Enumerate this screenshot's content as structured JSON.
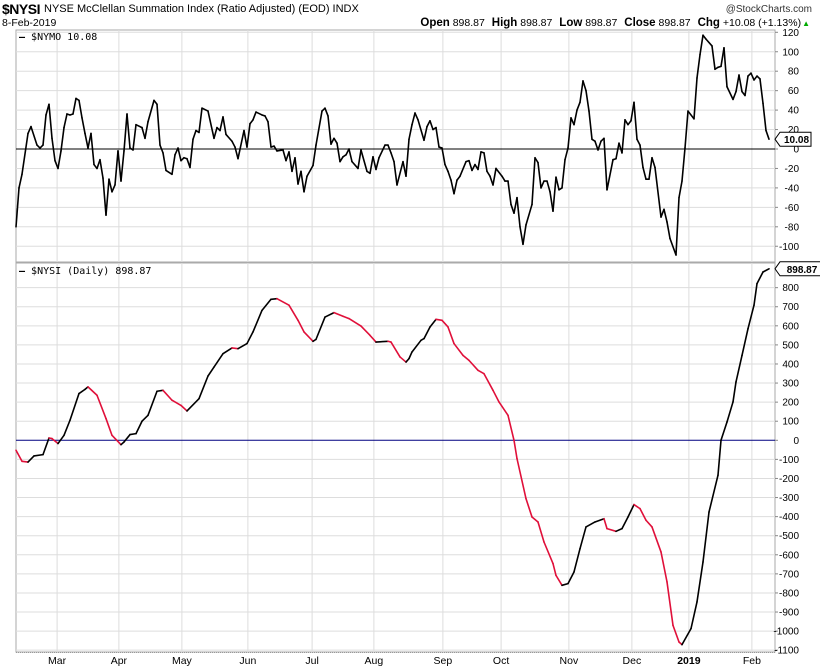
{
  "header": {
    "symbol": "$NYSI",
    "title": "NYSE McClellan Summation Index (Ratio Adjusted) (EOD)  INDX",
    "brand": "@StockCharts.com",
    "date": "8-Feb-2019",
    "open_label": "Open",
    "open": "898.87",
    "high_label": "High",
    "high": "898.87",
    "low_label": "Low",
    "low": "898.87",
    "close_label": "Close",
    "close": "898.87",
    "chg_label": "Chg",
    "chg": "+10.08 (+1.13%)",
    "chg_icon": "up-triangle-icon"
  },
  "colors": {
    "line": "#000000",
    "falling": "#e0103a",
    "zero_line": "#000080",
    "grid": "#dddddd",
    "up": "#00aa00"
  },
  "chart_data": [
    {
      "type": "line",
      "name": "$NYMO",
      "legend": "$NYMO 10.08",
      "last_value": "10.08",
      "ylim": [
        -110,
        125
      ],
      "yticks": [
        120,
        100,
        80,
        60,
        40,
        20,
        0,
        -20,
        -40,
        -60,
        -80,
        -100
      ],
      "zero_line": 0,
      "x_unit": "trading day index",
      "points": [
        [
          0,
          -80
        ],
        [
          1,
          -40
        ],
        [
          2,
          -26
        ],
        [
          4,
          16
        ],
        [
          5,
          23
        ],
        [
          7,
          4
        ],
        [
          8,
          1
        ],
        [
          9,
          4
        ],
        [
          10,
          35
        ],
        [
          11,
          46
        ],
        [
          12,
          11
        ],
        [
          13,
          -12
        ],
        [
          14,
          -20
        ],
        [
          15,
          -2
        ],
        [
          16,
          22
        ],
        [
          17,
          36
        ],
        [
          18,
          35
        ],
        [
          19,
          36
        ],
        [
          20,
          52
        ],
        [
          21,
          50
        ],
        [
          22,
          32
        ],
        [
          23,
          16
        ],
        [
          24,
          1
        ],
        [
          25,
          16
        ],
        [
          26,
          -16
        ],
        [
          27,
          -20
        ],
        [
          28,
          -11
        ],
        [
          29,
          -30
        ],
        [
          30,
          -68
        ],
        [
          31,
          -31
        ],
        [
          32,
          -44
        ],
        [
          33,
          -37
        ],
        [
          34,
          -2
        ],
        [
          35,
          -33
        ],
        [
          36,
          -2
        ],
        [
          37,
          36
        ],
        [
          38,
          1
        ],
        [
          39,
          -1
        ],
        [
          40,
          25
        ],
        [
          42,
          22
        ],
        [
          43,
          11
        ],
        [
          44,
          28
        ],
        [
          46,
          50
        ],
        [
          47,
          46
        ],
        [
          48,
          4
        ],
        [
          49,
          -4
        ],
        [
          50,
          -22
        ],
        [
          52,
          -26
        ],
        [
          53,
          -6
        ],
        [
          54,
          1
        ],
        [
          55,
          -12
        ],
        [
          56,
          -9
        ],
        [
          57,
          -10
        ],
        [
          58,
          -19
        ],
        [
          59,
          10
        ],
        [
          60,
          19
        ],
        [
          61,
          17
        ],
        [
          62,
          42
        ],
        [
          64,
          39
        ],
        [
          66,
          11
        ],
        [
          67,
          22
        ],
        [
          68,
          19
        ],
        [
          69,
          33
        ],
        [
          70,
          15
        ],
        [
          72,
          8
        ],
        [
          73,
          2
        ],
        [
          74,
          -10
        ],
        [
          76,
          19
        ],
        [
          77,
          2
        ],
        [
          78,
          26
        ],
        [
          79,
          30
        ],
        [
          80,
          38
        ],
        [
          82,
          35
        ],
        [
          83,
          34
        ],
        [
          84,
          28
        ],
        [
          85,
          2
        ],
        [
          86,
          3
        ],
        [
          87,
          -2
        ],
        [
          89,
          -1
        ],
        [
          90,
          -12
        ],
        [
          91,
          -3
        ],
        [
          92,
          -23
        ],
        [
          93,
          -9
        ],
        [
          94,
          -36
        ],
        [
          95,
          -23
        ],
        [
          96,
          -44
        ],
        [
          97,
          -28
        ],
        [
          99,
          -17
        ],
        [
          100,
          4
        ],
        [
          102,
          39
        ],
        [
          103,
          42
        ],
        [
          104,
          34
        ],
        [
          105,
          5
        ],
        [
          106,
          11
        ],
        [
          107,
          6
        ],
        [
          108,
          -13
        ],
        [
          109,
          -8
        ],
        [
          110,
          -6
        ],
        [
          111,
          0
        ],
        [
          112,
          -13
        ],
        [
          114,
          -20
        ],
        [
          115,
          -1
        ],
        [
          117,
          -23
        ],
        [
          118,
          -25
        ],
        [
          119,
          -8
        ],
        [
          120,
          -21
        ],
        [
          121,
          -9
        ],
        [
          123,
          4
        ],
        [
          124,
          4
        ],
        [
          125,
          -4
        ],
        [
          126,
          -13
        ],
        [
          127,
          -37
        ],
        [
          129,
          -13
        ],
        [
          130,
          -28
        ],
        [
          131,
          10
        ],
        [
          132,
          25
        ],
        [
          133,
          37
        ],
        [
          134,
          30
        ],
        [
          136,
          9
        ],
        [
          137,
          23
        ],
        [
          138,
          29
        ],
        [
          139,
          20
        ],
        [
          140,
          22
        ],
        [
          141,
          2
        ],
        [
          142,
          1
        ],
        [
          143,
          -16
        ],
        [
          144,
          -23
        ],
        [
          145,
          -32
        ],
        [
          146,
          -46
        ],
        [
          147,
          -32
        ],
        [
          148,
          -28
        ],
        [
          150,
          -13
        ],
        [
          151,
          -12
        ],
        [
          152,
          -22
        ],
        [
          153,
          -16
        ],
        [
          154,
          -21
        ],
        [
          155,
          -3
        ],
        [
          156,
          -4
        ],
        [
          157,
          -23
        ],
        [
          158,
          -28
        ],
        [
          159,
          -37
        ],
        [
          160,
          -20
        ],
        [
          162,
          -28
        ],
        [
          163,
          -33
        ],
        [
          164,
          -33
        ],
        [
          165,
          -57
        ],
        [
          166,
          -66
        ],
        [
          167,
          -50
        ],
        [
          168,
          -80
        ],
        [
          169,
          -98
        ],
        [
          170,
          -78
        ],
        [
          172,
          -57
        ],
        [
          173,
          -9
        ],
        [
          174,
          -14
        ],
        [
          175,
          -40
        ],
        [
          176,
          -33
        ],
        [
          177,
          -33
        ],
        [
          178,
          -44
        ],
        [
          179,
          -64
        ],
        [
          180,
          -29
        ],
        [
          181,
          -42
        ],
        [
          182,
          -40
        ],
        [
          183,
          -11
        ],
        [
          184,
          1
        ],
        [
          185,
          32
        ],
        [
          186,
          25
        ],
        [
          187,
          40
        ],
        [
          188,
          48
        ],
        [
          189,
          70
        ],
        [
          190,
          60
        ],
        [
          191,
          39
        ],
        [
          192,
          10
        ],
        [
          193,
          8
        ],
        [
          194,
          -1
        ],
        [
          195,
          8
        ],
        [
          196,
          11
        ],
        [
          197,
          -42
        ],
        [
          199,
          -11
        ],
        [
          200,
          -10
        ],
        [
          201,
          6
        ],
        [
          202,
          -4
        ],
        [
          203,
          30
        ],
        [
          204,
          25
        ],
        [
          205,
          29
        ],
        [
          206,
          48
        ],
        [
          207,
          10
        ],
        [
          208,
          4
        ],
        [
          209,
          -19
        ],
        [
          210,
          -31
        ],
        [
          211,
          -31
        ],
        [
          212,
          -9
        ],
        [
          213,
          -19
        ],
        [
          215,
          -70
        ],
        [
          216,
          -62
        ],
        [
          217,
          -75
        ],
        [
          218,
          -92
        ],
        [
          220,
          -109
        ],
        [
          221,
          -50
        ],
        [
          222,
          -33
        ],
        [
          223,
          1
        ],
        [
          224,
          39
        ],
        [
          226,
          31
        ],
        [
          227,
          73
        ],
        [
          228,
          97
        ],
        [
          229,
          117
        ],
        [
          230,
          113
        ],
        [
          232,
          106
        ],
        [
          233,
          82
        ],
        [
          234,
          84
        ],
        [
          235,
          85
        ],
        [
          236,
          104
        ],
        [
          237,
          64
        ],
        [
          239,
          51
        ],
        [
          240,
          59
        ],
        [
          241,
          76
        ],
        [
          242,
          59
        ],
        [
          243,
          55
        ],
        [
          244,
          75
        ],
        [
          245,
          78
        ],
        [
          246,
          71
        ],
        [
          247,
          75
        ],
        [
          248,
          72
        ],
        [
          249,
          47
        ],
        [
          250,
          19
        ],
        [
          251,
          10.08
        ]
      ]
    },
    {
      "type": "line",
      "name": "$NYSI",
      "legend": "$NYSI (Daily) 898.87",
      "last_value": "898.87",
      "ylim": [
        -1110,
        945
      ],
      "yticks": [
        800,
        700,
        600,
        500,
        400,
        300,
        200,
        100,
        0,
        -100,
        -200,
        -300,
        -400,
        -500,
        -600,
        -700,
        -800,
        -900,
        -1000,
        -1100
      ],
      "zero_line": 0,
      "x_unit": "trading day index",
      "color_rule": "red when falling, black when rising",
      "points": [
        [
          0,
          -52
        ],
        [
          2,
          -110
        ],
        [
          4,
          -114
        ],
        [
          6,
          -82
        ],
        [
          9,
          -75
        ],
        [
          11,
          12
        ],
        [
          12,
          9
        ],
        [
          14,
          -17
        ],
        [
          16,
          26
        ],
        [
          18,
          105
        ],
        [
          21,
          245
        ],
        [
          23,
          267
        ],
        [
          24,
          280
        ],
        [
          27,
          236
        ],
        [
          30,
          114
        ],
        [
          32,
          26
        ],
        [
          35,
          -23
        ],
        [
          36,
          -9
        ],
        [
          38,
          30
        ],
        [
          40,
          35
        ],
        [
          42,
          100
        ],
        [
          44,
          131
        ],
        [
          47,
          257
        ],
        [
          49,
          262
        ],
        [
          52,
          210
        ],
        [
          55,
          183
        ],
        [
          57,
          154
        ],
        [
          61,
          218
        ],
        [
          64,
          337
        ],
        [
          66,
          384
        ],
        [
          69,
          454
        ],
        [
          72,
          484
        ],
        [
          74,
          480
        ],
        [
          77,
          507
        ],
        [
          79,
          568
        ],
        [
          82,
          681
        ],
        [
          85,
          739
        ],
        [
          87,
          742
        ],
        [
          91,
          708
        ],
        [
          94,
          629
        ],
        [
          96,
          568
        ],
        [
          99,
          519
        ],
        [
          100,
          529
        ],
        [
          103,
          646
        ],
        [
          106,
          669
        ],
        [
          109,
          650
        ],
        [
          111,
          638
        ],
        [
          115,
          599
        ],
        [
          118,
          550
        ],
        [
          120,
          515
        ],
        [
          124,
          519
        ],
        [
          125,
          515
        ],
        [
          128,
          437
        ],
        [
          130,
          410
        ],
        [
          131,
          428
        ],
        [
          132,
          463
        ],
        [
          135,
          524
        ],
        [
          136,
          533
        ],
        [
          138,
          594
        ],
        [
          140,
          634
        ],
        [
          142,
          629
        ],
        [
          144,
          594
        ],
        [
          146,
          507
        ],
        [
          149,
          445
        ],
        [
          151,
          419
        ],
        [
          154,
          367
        ],
        [
          156,
          349
        ],
        [
          159,
          262
        ],
        [
          161,
          201
        ],
        [
          164,
          131
        ],
        [
          166,
          0
        ],
        [
          167,
          -96
        ],
        [
          170,
          -306
        ],
        [
          172,
          -402
        ],
        [
          174,
          -428
        ],
        [
          176,
          -533
        ],
        [
          179,
          -646
        ],
        [
          180,
          -708
        ],
        [
          182,
          -760
        ],
        [
          184,
          -751
        ],
        [
          186,
          -690
        ],
        [
          188,
          -568
        ],
        [
          190,
          -454
        ],
        [
          193,
          -428
        ],
        [
          196,
          -411
        ],
        [
          197,
          -463
        ],
        [
          200,
          -477
        ],
        [
          202,
          -463
        ],
        [
          204,
          -402
        ],
        [
          206,
          -337
        ],
        [
          208,
          -358
        ],
        [
          210,
          -419
        ],
        [
          212,
          -454
        ],
        [
          215,
          -585
        ],
        [
          217,
          -742
        ],
        [
          219,
          -970
        ],
        [
          221,
          -1057
        ],
        [
          222,
          -1071
        ],
        [
          225,
          -987
        ],
        [
          227,
          -847
        ],
        [
          229,
          -638
        ],
        [
          231,
          -376
        ],
        [
          234,
          -183
        ],
        [
          235,
          0
        ],
        [
          237,
          96
        ],
        [
          239,
          201
        ],
        [
          240,
          306
        ],
        [
          242,
          445
        ],
        [
          244,
          585
        ],
        [
          246,
          708
        ],
        [
          247,
          821
        ],
        [
          249,
          882
        ],
        [
          251,
          898.87
        ]
      ]
    }
  ],
  "x_axis": {
    "ticks": [
      {
        "label": "Mar",
        "t": 13.7
      },
      {
        "label": "Apr",
        "t": 34.3
      },
      {
        "label": "May",
        "t": 55.3
      },
      {
        "label": "Jun",
        "t": 77.3
      },
      {
        "label": "Jul",
        "t": 98.7
      },
      {
        "label": "Aug",
        "t": 119.3
      },
      {
        "label": "Sep",
        "t": 142.3
      },
      {
        "label": "Oct",
        "t": 161.7
      },
      {
        "label": "Nov",
        "t": 184.3
      },
      {
        "label": "Dec",
        "t": 205.3
      },
      {
        "label": "2019",
        "t": 224.3,
        "bold": true
      },
      {
        "label": "Feb",
        "t": 245.3
      }
    ]
  }
}
